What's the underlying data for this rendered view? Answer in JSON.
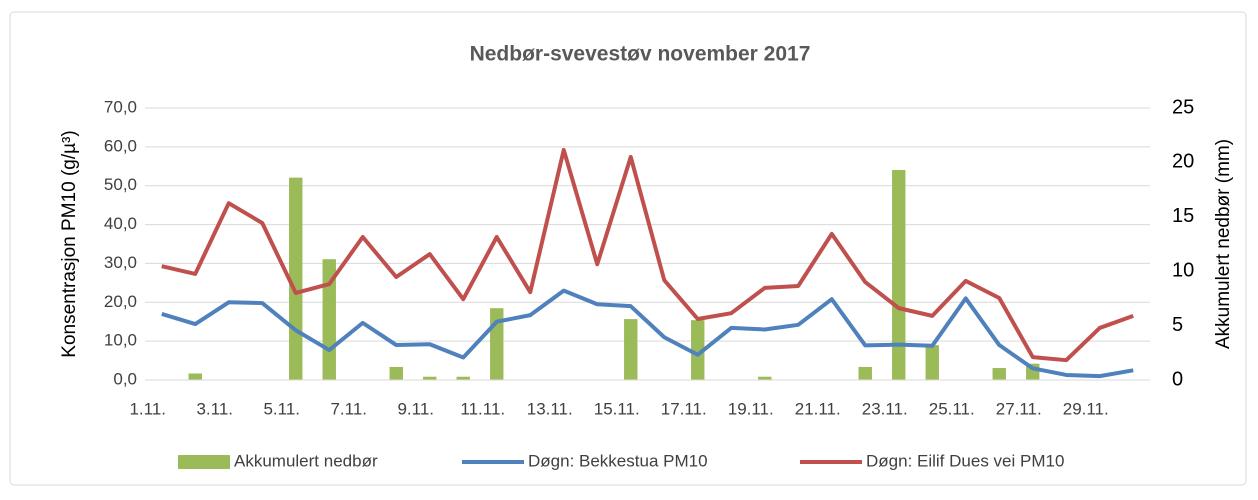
{
  "chart_data": {
    "type": "combo",
    "title": "Nedbør-svevestøv november 2017",
    "ylabel": "Konsentrasjon PM10 (g/µ³)",
    "y2label": "Akkumulert nedbør (mm)",
    "categories": [
      "1.11.",
      null,
      "3.11.",
      null,
      "5.11.",
      null,
      "7.11.",
      null,
      "9.11.",
      null,
      "11.11.",
      null,
      "13.11.",
      null,
      "15.11.",
      null,
      "17.11.",
      null,
      "19.11.",
      null,
      "21.11.",
      null,
      "23.11.",
      null,
      "25.11.",
      null,
      "27.11.",
      null,
      "29.11.",
      null
    ],
    "series": [
      {
        "name": "Akkumulert nedbør",
        "kind": "bar",
        "axis": "y2",
        "color": "#9bbb59",
        "values": [
          0,
          0.6,
          0,
          0,
          18.6,
          11.1,
          0,
          1.2,
          0.3,
          0.3,
          6.6,
          0,
          0,
          0,
          5.6,
          0,
          5.5,
          0,
          0.3,
          0,
          0,
          1.2,
          19.3,
          3.2,
          0,
          1.1,
          1.5,
          0,
          0,
          0
        ]
      },
      {
        "name": "Døgn: Bekkestua PM10",
        "kind": "line",
        "color": "#4f81bd",
        "values": [
          17,
          14.4,
          20,
          19.8,
          12.8,
          7.7,
          14.7,
          9,
          9.2,
          5.8,
          15,
          16.7,
          23,
          19.5,
          19,
          11,
          6.5,
          13.4,
          13,
          14.2,
          20.8,
          8.9,
          9.1,
          8.8,
          21,
          9,
          3,
          1.3,
          1,
          2.5
        ]
      },
      {
        "name": "Døgn: Eilif Dues vei PM10",
        "kind": "line",
        "color": "#c0504d",
        "values": [
          29.3,
          27.3,
          45.5,
          40.4,
          22.4,
          24.7,
          36.8,
          26.5,
          32.4,
          20.8,
          36.8,
          22.6,
          59.2,
          29.8,
          57.4,
          25.7,
          15.7,
          17.2,
          23.7,
          24.2,
          37.6,
          25.2,
          18.5,
          16.5,
          25.5,
          21.1,
          5.9,
          5.1,
          13.4,
          16.5
        ]
      }
    ],
    "ylim": [
      0,
      70
    ],
    "yticks": [
      {
        "value": 0,
        "label": "0,0"
      },
      {
        "value": 10,
        "label": "10,0"
      },
      {
        "value": 20,
        "label": "20,0"
      },
      {
        "value": 30,
        "label": "30,0"
      },
      {
        "value": 40,
        "label": "40,0"
      },
      {
        "value": 50,
        "label": "50,0"
      },
      {
        "value": 60,
        "label": "60,0"
      },
      {
        "value": 70,
        "label": "70,0"
      }
    ],
    "y2lim": [
      0,
      25
    ],
    "y2ticks": [
      0,
      5,
      10,
      15,
      20,
      25
    ],
    "grid": true,
    "legend": "bottom"
  }
}
